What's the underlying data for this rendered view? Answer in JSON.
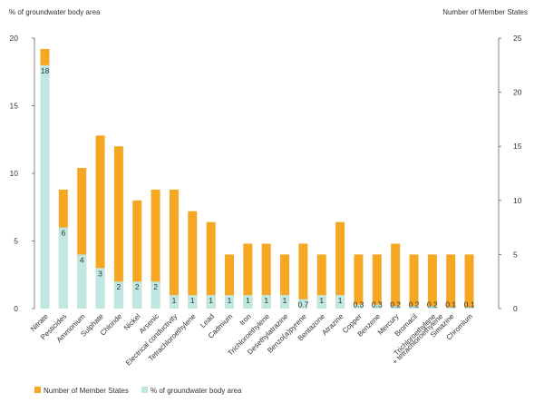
{
  "chart_data": {
    "type": "bar",
    "left_axis_label": "% of groundwater body area",
    "right_axis_label": "Number of Member  States",
    "categories": [
      "Nitrate",
      "Pesticides",
      "Ammonium",
      "Sulphate",
      "Chloride",
      "Nickel",
      "Arsenic",
      "Electrical conductivity",
      "Tetrachloroethylene",
      "Lead",
      "Cadmium",
      "Iron",
      "Trichloroethylene",
      "Desethylatrazine",
      "Benzo(a)pyrene",
      "Bentazone",
      "Atrazine",
      "Copper",
      "Benzene",
      "Mercury",
      "Bromacil",
      "Trichloroethylene + tetrachloroethylene",
      "Simazine",
      "Chromium"
    ],
    "series": [
      {
        "name": "Number of Member States",
        "axis": "right",
        "color": "#f5a623",
        "values": [
          24,
          11,
          13,
          16,
          15,
          10,
          11,
          11,
          9,
          8,
          5,
          6,
          6,
          5,
          6,
          5,
          8,
          5,
          5,
          6,
          5,
          5,
          5,
          5
        ]
      },
      {
        "name": "% of groundwater body area",
        "axis": "left",
        "color": "#bfe8e2",
        "values": [
          18,
          6,
          4,
          3,
          2,
          2,
          2,
          1,
          1,
          1,
          1,
          1,
          1,
          1,
          0.7,
          1,
          1,
          0.3,
          0.3,
          0.2,
          0.2,
          0.2,
          0.1,
          0.1
        ],
        "labels": [
          "18",
          "6",
          "4",
          "3",
          "2",
          "2",
          "2",
          "1",
          "1",
          "1",
          "1",
          "1",
          "1",
          "1",
          "0.7",
          "1",
          "1",
          "0.3",
          "0.3",
          "0.2",
          "0.2",
          "0.2",
          "0.1",
          "0.1"
        ]
      }
    ],
    "left_ylim": [
      0,
      20
    ],
    "left_ticks": [
      "0",
      "5",
      "10",
      "15",
      "20"
    ],
    "right_ylim": [
      0,
      25
    ],
    "right_ticks": [
      "0",
      "5",
      "10",
      "15",
      "20",
      "25"
    ],
    "legend": [
      {
        "label": "Number of Member States",
        "color": "#f5a623"
      },
      {
        "label": "% of groundwater body area",
        "color": "#bfe8e2"
      }
    ],
    "legend_position": "bottom-left"
  }
}
